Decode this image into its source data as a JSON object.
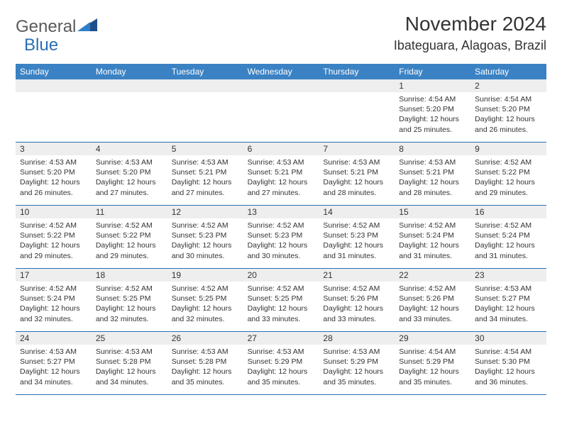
{
  "logo": {
    "text1": "General",
    "text2": "Blue"
  },
  "title": "November 2024",
  "location": "Ibateguara, Alagoas, Brazil",
  "colors": {
    "header_bg": "#3b82c4",
    "header_text": "#ffffff",
    "row_border": "#2a6fb5",
    "daynum_bg": "#eeeeee",
    "text": "#333333",
    "logo_gray": "#5a5a5a",
    "logo_blue": "#2a6fb5",
    "triangle_dark": "#1f4f8a",
    "triangle_light": "#2f7ec7",
    "background": "#ffffff"
  },
  "typography": {
    "title_fontsize": 28,
    "location_fontsize": 18,
    "logo_fontsize": 24,
    "dayheader_fontsize": 12,
    "daynum_fontsize": 12,
    "cell_fontsize": 10.5
  },
  "layout": {
    "columns": 7,
    "rows": 5,
    "first_day_column": 5
  },
  "day_headers": [
    "Sunday",
    "Monday",
    "Tuesday",
    "Wednesday",
    "Thursday",
    "Friday",
    "Saturday"
  ],
  "days": [
    {
      "n": 1,
      "sunrise": "4:54 AM",
      "sunset": "5:20 PM",
      "daylight": "12 hours and 25 minutes."
    },
    {
      "n": 2,
      "sunrise": "4:54 AM",
      "sunset": "5:20 PM",
      "daylight": "12 hours and 26 minutes."
    },
    {
      "n": 3,
      "sunrise": "4:53 AM",
      "sunset": "5:20 PM",
      "daylight": "12 hours and 26 minutes."
    },
    {
      "n": 4,
      "sunrise": "4:53 AM",
      "sunset": "5:20 PM",
      "daylight": "12 hours and 27 minutes."
    },
    {
      "n": 5,
      "sunrise": "4:53 AM",
      "sunset": "5:21 PM",
      "daylight": "12 hours and 27 minutes."
    },
    {
      "n": 6,
      "sunrise": "4:53 AM",
      "sunset": "5:21 PM",
      "daylight": "12 hours and 27 minutes."
    },
    {
      "n": 7,
      "sunrise": "4:53 AM",
      "sunset": "5:21 PM",
      "daylight": "12 hours and 28 minutes."
    },
    {
      "n": 8,
      "sunrise": "4:53 AM",
      "sunset": "5:21 PM",
      "daylight": "12 hours and 28 minutes."
    },
    {
      "n": 9,
      "sunrise": "4:52 AM",
      "sunset": "5:22 PM",
      "daylight": "12 hours and 29 minutes."
    },
    {
      "n": 10,
      "sunrise": "4:52 AM",
      "sunset": "5:22 PM",
      "daylight": "12 hours and 29 minutes."
    },
    {
      "n": 11,
      "sunrise": "4:52 AM",
      "sunset": "5:22 PM",
      "daylight": "12 hours and 29 minutes."
    },
    {
      "n": 12,
      "sunrise": "4:52 AM",
      "sunset": "5:23 PM",
      "daylight": "12 hours and 30 minutes."
    },
    {
      "n": 13,
      "sunrise": "4:52 AM",
      "sunset": "5:23 PM",
      "daylight": "12 hours and 30 minutes."
    },
    {
      "n": 14,
      "sunrise": "4:52 AM",
      "sunset": "5:23 PM",
      "daylight": "12 hours and 31 minutes."
    },
    {
      "n": 15,
      "sunrise": "4:52 AM",
      "sunset": "5:24 PM",
      "daylight": "12 hours and 31 minutes."
    },
    {
      "n": 16,
      "sunrise": "4:52 AM",
      "sunset": "5:24 PM",
      "daylight": "12 hours and 31 minutes."
    },
    {
      "n": 17,
      "sunrise": "4:52 AM",
      "sunset": "5:24 PM",
      "daylight": "12 hours and 32 minutes."
    },
    {
      "n": 18,
      "sunrise": "4:52 AM",
      "sunset": "5:25 PM",
      "daylight": "12 hours and 32 minutes."
    },
    {
      "n": 19,
      "sunrise": "4:52 AM",
      "sunset": "5:25 PM",
      "daylight": "12 hours and 32 minutes."
    },
    {
      "n": 20,
      "sunrise": "4:52 AM",
      "sunset": "5:25 PM",
      "daylight": "12 hours and 33 minutes."
    },
    {
      "n": 21,
      "sunrise": "4:52 AM",
      "sunset": "5:26 PM",
      "daylight": "12 hours and 33 minutes."
    },
    {
      "n": 22,
      "sunrise": "4:52 AM",
      "sunset": "5:26 PM",
      "daylight": "12 hours and 33 minutes."
    },
    {
      "n": 23,
      "sunrise": "4:53 AM",
      "sunset": "5:27 PM",
      "daylight": "12 hours and 34 minutes."
    },
    {
      "n": 24,
      "sunrise": "4:53 AM",
      "sunset": "5:27 PM",
      "daylight": "12 hours and 34 minutes."
    },
    {
      "n": 25,
      "sunrise": "4:53 AM",
      "sunset": "5:28 PM",
      "daylight": "12 hours and 34 minutes."
    },
    {
      "n": 26,
      "sunrise": "4:53 AM",
      "sunset": "5:28 PM",
      "daylight": "12 hours and 35 minutes."
    },
    {
      "n": 27,
      "sunrise": "4:53 AM",
      "sunset": "5:29 PM",
      "daylight": "12 hours and 35 minutes."
    },
    {
      "n": 28,
      "sunrise": "4:53 AM",
      "sunset": "5:29 PM",
      "daylight": "12 hours and 35 minutes."
    },
    {
      "n": 29,
      "sunrise": "4:54 AM",
      "sunset": "5:29 PM",
      "daylight": "12 hours and 35 minutes."
    },
    {
      "n": 30,
      "sunrise": "4:54 AM",
      "sunset": "5:30 PM",
      "daylight": "12 hours and 36 minutes."
    }
  ],
  "labels": {
    "sunrise": "Sunrise:",
    "sunset": "Sunset:",
    "daylight": "Daylight:"
  }
}
